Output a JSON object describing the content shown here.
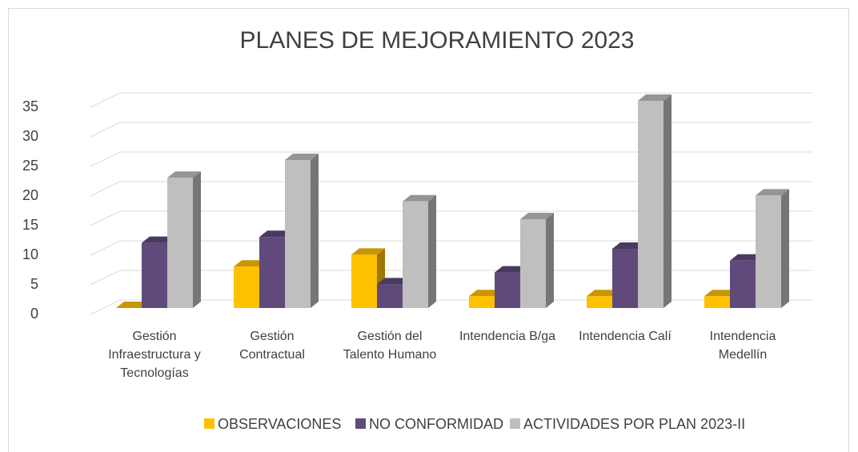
{
  "chart_data": {
    "type": "bar3d",
    "title": "PLANES DE MEJORAMIENTO 2023",
    "categories": [
      "Gestión Infraestructura y Tecnologías",
      "Gestión Contractual",
      "Gestión del Talento Humano",
      "Intendencia B/ga",
      "Intendencia Calí",
      "Intendencia Medellín"
    ],
    "series": [
      {
        "name": "OBSERVACIONES",
        "color": "#ffc000",
        "values": [
          0,
          7,
          9,
          2,
          2,
          2
        ]
      },
      {
        "name": "NO CONFORMIDAD",
        "color": "#604a7b",
        "values": [
          11,
          12,
          4,
          6,
          10,
          8
        ]
      },
      {
        "name": "ACTIVIDADES POR PLAN 2023-II",
        "color": "#bfbfbf",
        "values": [
          22,
          25,
          18,
          15,
          35,
          19
        ]
      }
    ],
    "ylim": [
      0,
      35
    ],
    "yticks": [
      0,
      5,
      10,
      15,
      20,
      25,
      30,
      35
    ],
    "grid": true,
    "legend": "bottom"
  }
}
